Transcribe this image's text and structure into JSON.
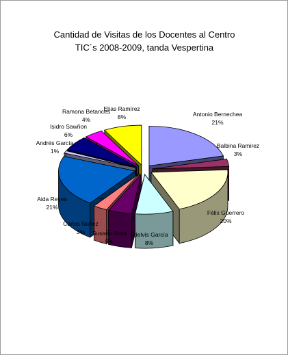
{
  "chart_data": {
    "type": "pie",
    "title": "Cantidad de Visitas de los Docentes al Centro",
    "subtitle": "TIC´s 2008-2009, tanda Vespertina",
    "three_d": true,
    "exploded": true,
    "slices": [
      {
        "name": "Antonio Bernechea",
        "percent_label": "21%",
        "value": 21,
        "color": "#9999ff"
      },
      {
        "name": "Balbina Ramirez",
        "percent_label": "3%",
        "value": 3,
        "color": "#993366"
      },
      {
        "name": "Félix Guerrero",
        "percent_label": "20%",
        "value": 20,
        "color": "#ffffcc"
      },
      {
        "name": "Edelvis García",
        "percent_label": "8%",
        "value": 8,
        "color": "#ccffff"
      },
      {
        "name": "Susana Sosa",
        "percent_label": "5%",
        "value": 5,
        "color": "#660066"
      },
      {
        "name": "Carlos Núñez",
        "percent_label": "3%",
        "value": 3,
        "color": "#ff8080"
      },
      {
        "name": "Aida Reyes",
        "percent_label": "21%",
        "value": 21,
        "color": "#0066cc"
      },
      {
        "name": "Andrés García",
        "percent_label": "1%",
        "value": 1,
        "color": "#ccccff"
      },
      {
        "name": "Isidro Sawñon",
        "percent_label": "6%",
        "value": 6,
        "color": "#000080"
      },
      {
        "name": "Ramona Betances",
        "percent_label": "4%",
        "value": 4,
        "color": "#ff00ff"
      },
      {
        "name": "Elías Ramírez",
        "percent_label": "8%",
        "value": 8,
        "color": "#ffff00"
      }
    ]
  }
}
